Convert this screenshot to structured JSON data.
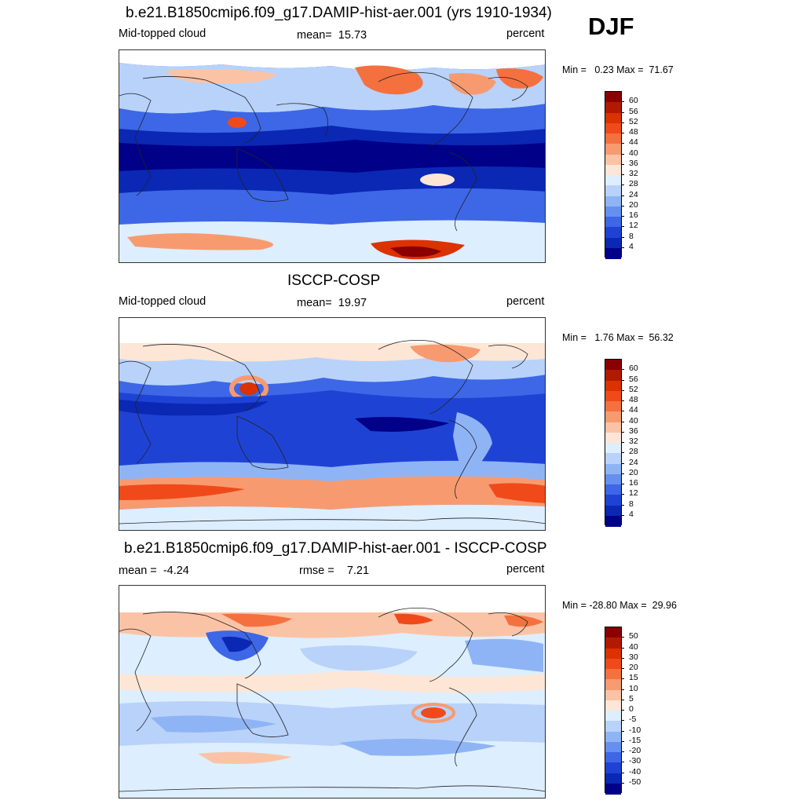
{
  "season": "DJF",
  "panels": [
    {
      "title": "b.e21.B1850cmip6.f09_g17.DAMIP-hist-aer.001 (yrs 1910-1934)",
      "left_label": "Mid-topped cloud",
      "center_label": "mean=  15.73",
      "right_label": "percent",
      "minmax": "Min =   0.23 Max =  71.67",
      "colorbar": {
        "labels": [
          "60",
          "56",
          "52",
          "48",
          "44",
          "40",
          "36",
          "32",
          "28",
          "24",
          "20",
          "16",
          "12",
          "8",
          "4"
        ],
        "colors": [
          "#8a0000",
          "#b21a00",
          "#dc3200",
          "#f04a1a",
          "#f4713f",
          "#f89a70",
          "#fbc3a6",
          "#fde6d6",
          "#ddeeff",
          "#b8d2fa",
          "#8fb4f5",
          "#6590ef",
          "#3d67e6",
          "#1e43d4",
          "#0a28b4",
          "#000088"
        ]
      }
    },
    {
      "title": "ISCCP-COSP",
      "left_label": "Mid-topped cloud",
      "center_label": "mean=  19.97",
      "right_label": "percent",
      "minmax": "Min =   1.76 Max =  56.32",
      "colorbar": {
        "labels": [
          "60",
          "56",
          "52",
          "48",
          "44",
          "40",
          "36",
          "32",
          "28",
          "24",
          "20",
          "16",
          "12",
          "8",
          "4"
        ],
        "colors": [
          "#8a0000",
          "#b21a00",
          "#dc3200",
          "#f04a1a",
          "#f4713f",
          "#f89a70",
          "#fbc3a6",
          "#fde6d6",
          "#ddeeff",
          "#b8d2fa",
          "#8fb4f5",
          "#6590ef",
          "#3d67e6",
          "#1e43d4",
          "#0a28b4",
          "#000088"
        ]
      }
    },
    {
      "title": "b.e21.B1850cmip6.f09_g17.DAMIP-hist-aer.001 - ISCCP-COSP",
      "left_label": "mean =  -4.24",
      "center_label": "rmse =    7.21",
      "right_label": "percent",
      "minmax": "Min = -28.80 Max =  29.96",
      "colorbar": {
        "labels": [
          "50",
          "40",
          "30",
          "20",
          "15",
          "10",
          "5",
          "0",
          "-5",
          "-10",
          "-15",
          "-20",
          "-30",
          "-40",
          "-50"
        ],
        "colors": [
          "#8a0000",
          "#b21a00",
          "#dc3200",
          "#f04a1a",
          "#f4713f",
          "#f89a70",
          "#fbc3a6",
          "#fde6d6",
          "#ddeeff",
          "#b8d2fa",
          "#8fb4f5",
          "#6590ef",
          "#3d67e6",
          "#1e43d4",
          "#0a28b4",
          "#000088"
        ]
      }
    }
  ]
}
